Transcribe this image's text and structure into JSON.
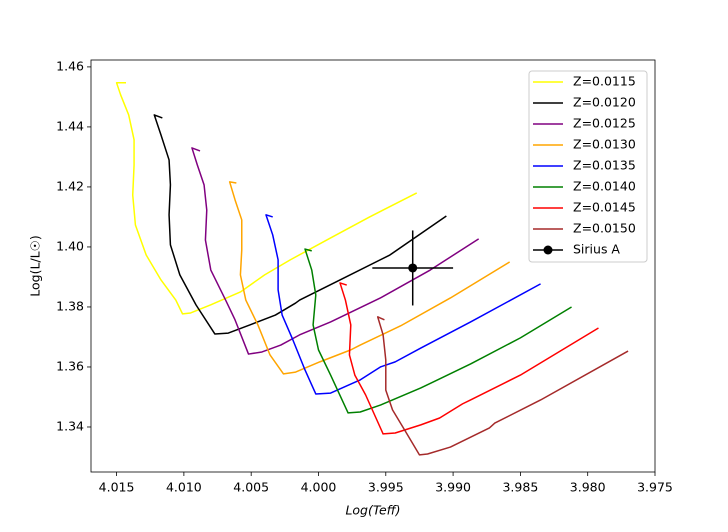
{
  "chart_data": {
    "type": "line",
    "xlabel": "Log(Teff)",
    "ylabel": "Log(L/L☉)",
    "xlim": [
      4.0169,
      3.975
    ],
    "ylim": [
      1.325,
      1.4623
    ],
    "xticks": [
      4.015,
      {
        "value": 4.01,
        "label": "4.010"
      },
      4.005,
      {
        "value": 4.0,
        "label": "4.000"
      },
      3.995,
      {
        "value": 3.99,
        "label": "3.990"
      },
      3.985,
      {
        "value": 3.98,
        "label": "3.980"
      },
      3.975
    ],
    "yticks": [
      1.34,
      1.36,
      1.38,
      {
        "value": 1.4,
        "label": "1.40"
      },
      1.42,
      1.44,
      1.46
    ],
    "grid": false,
    "legend": "upper right",
    "series": [
      {
        "name": "Z=0.0115",
        "color": "#ffff00",
        "x": [
          4.0143,
          4.015,
          4.0147,
          4.0141,
          4.0137,
          4.0137,
          4.0138,
          4.0136,
          4.0128,
          4.0117,
          4.0106,
          4.0101,
          4.0095,
          4.008,
          4.0058,
          4.004,
          4.0021,
          3.9991,
          3.9962,
          3.9927
        ],
        "values": [
          1.4547,
          1.4547,
          1.4507,
          1.444,
          1.4357,
          1.4273,
          1.4173,
          1.4073,
          1.3973,
          1.389,
          1.3823,
          1.3777,
          1.378,
          1.3807,
          1.385,
          1.3907,
          1.3957,
          1.403,
          1.41,
          1.418
        ]
      },
      {
        "name": "Z=0.0120",
        "color": "#000000",
        "x": [
          4.0116,
          4.0122,
          4.0117,
          4.0111,
          4.011,
          4.0111,
          4.011,
          4.0103,
          4.0091,
          4.0077,
          4.0067,
          4.0051,
          4.0032,
          4.0017,
          4.0014,
          3.9984,
          3.9947,
          3.9905
        ],
        "values": [
          1.443,
          1.444,
          1.4373,
          1.429,
          1.4207,
          1.4107,
          1.4007,
          1.3907,
          1.3807,
          1.371,
          1.3713,
          1.374,
          1.3773,
          1.3813,
          1.3823,
          1.389,
          1.3973,
          1.4103
        ]
      },
      {
        "name": "Z=0.0125",
        "color": "#800080",
        "x": [
          4.0088,
          4.0094,
          4.009,
          4.0085,
          4.0083,
          4.0084,
          4.008,
          4.0069,
          4.0062,
          4.0052,
          4.0042,
          4.0028,
          4.0014,
          3.9991,
          3.9954,
          3.9917,
          3.9881
        ],
        "values": [
          1.432,
          1.433,
          1.4273,
          1.4207,
          1.4123,
          1.4023,
          1.3923,
          1.3823,
          1.3757,
          1.3643,
          1.365,
          1.3673,
          1.3707,
          1.375,
          1.383,
          1.3923,
          1.4027
        ]
      },
      {
        "name": "Z=0.0130",
        "color": "#ffa500",
        "x": [
          4.0061,
          4.0066,
          4.0062,
          4.0057,
          4.0057,
          4.0058,
          4.0054,
          4.0045,
          4.0036,
          4.0026,
          4.0017,
          3.9999,
          3.9976,
          3.9969,
          3.9939,
          3.9902,
          3.9858
        ],
        "values": [
          1.4213,
          1.4217,
          1.4157,
          1.409,
          1.399,
          1.3907,
          1.3823,
          1.374,
          1.364,
          1.3577,
          1.3583,
          1.3617,
          1.3657,
          1.3673,
          1.3737,
          1.383,
          1.395
        ]
      },
      {
        "name": "Z=0.0135",
        "color": "#0000ff",
        "x": [
          4.0034,
          4.0039,
          4.0034,
          4.003,
          4.003,
          4.0027,
          4.0019,
          4.001,
          4.0002,
          3.9991,
          3.9969,
          3.9954,
          3.9943,
          3.9924,
          3.9887,
          3.9835
        ],
        "values": [
          1.41,
          1.4107,
          1.404,
          1.3957,
          1.3857,
          1.3773,
          1.369,
          1.359,
          1.351,
          1.3513,
          1.3557,
          1.36,
          1.3617,
          1.3663,
          1.375,
          1.3877
        ]
      },
      {
        "name": "Z=0.0140",
        "color": "#008000",
        "x": [
          4.0005,
          4.001,
          4.0005,
          4.0002,
          4.0004,
          4.0,
          3.9991,
          3.9978,
          3.9969,
          3.9954,
          3.9945,
          3.9924,
          3.9887,
          3.985,
          3.9812
        ],
        "values": [
          1.3987,
          1.3993,
          1.3923,
          1.384,
          1.374,
          1.3657,
          1.3573,
          1.3447,
          1.345,
          1.3473,
          1.349,
          1.353,
          1.361,
          1.3697,
          1.38
        ]
      },
      {
        "name": "Z=0.0145",
        "color": "#ff0000",
        "x": [
          3.9979,
          3.9984,
          3.998,
          3.9976,
          3.9977,
          3.9973,
          3.9965,
          3.9952,
          3.9943,
          3.9924,
          3.991,
          3.9893,
          3.9887,
          3.985,
          3.9792
        ],
        "values": [
          1.3873,
          1.388,
          1.3823,
          1.374,
          1.364,
          1.3573,
          1.3507,
          1.3377,
          1.338,
          1.3407,
          1.343,
          1.3477,
          1.349,
          1.3573,
          1.373
        ]
      },
      {
        "name": "Z=0.0150",
        "color": "#a52a2a",
        "x": [
          3.9951,
          3.9956,
          3.9952,
          3.995,
          3.995,
          3.9945,
          3.9936,
          3.9925,
          3.9919,
          3.9902,
          3.9873,
          3.9869,
          3.9835,
          3.977
        ],
        "values": [
          1.3757,
          1.3767,
          1.3707,
          1.3623,
          1.3523,
          1.3457,
          1.339,
          1.3307,
          1.331,
          1.3333,
          1.3397,
          1.3413,
          1.349,
          1.3653
        ]
      },
      {
        "name": "Sirius A",
        "color": "#000000",
        "x": [
          3.993
        ],
        "values": [
          1.393
        ],
        "xerr": [
          0.003
        ],
        "yerr": [
          0.0125
        ]
      }
    ]
  }
}
